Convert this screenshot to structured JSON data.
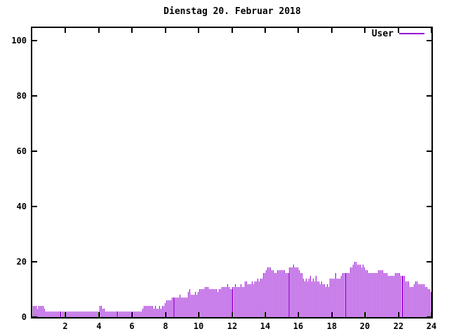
{
  "title": "Dienstag 20. Februar 2018",
  "legend": {
    "label": "User"
  },
  "colors": {
    "series": "#9400d3",
    "axis": "#000000",
    "background": "#ffffff"
  },
  "chart_data": {
    "type": "bar",
    "title": "Dienstag 20. Februar 2018",
    "style": "gnuplot-like impulse plot, one thin vertical bar per 5-minute sample",
    "series_name": "User",
    "bar_color": "#9400d3",
    "x_unit": "hour of day",
    "interval_minutes": 5,
    "first_sample_hour": 0.0833,
    "xlim": [
      0,
      24
    ],
    "ylim": [
      0,
      104.5
    ],
    "y_ticks": [
      0,
      20,
      40,
      60,
      80,
      100
    ],
    "x_ticks": [
      2,
      4,
      6,
      8,
      10,
      12,
      14,
      16,
      18,
      20,
      22,
      24
    ],
    "grid": false,
    "legend_position": "top-right-inside",
    "values": [
      4,
      4,
      4,
      3,
      4,
      4,
      4,
      4,
      3,
      2,
      2,
      2,
      2,
      2,
      2,
      2,
      2,
      2,
      2,
      2,
      2,
      2,
      2,
      2,
      2,
      2,
      2,
      2,
      2,
      2,
      2,
      2,
      2,
      2,
      2,
      2,
      2,
      2,
      2,
      2,
      2,
      2,
      2,
      2,
      2,
      2,
      2,
      2,
      4,
      4,
      3,
      3,
      2,
      2,
      2,
      2,
      2,
      2,
      2,
      2,
      2,
      2,
      2,
      2,
      2,
      2,
      2,
      2,
      2,
      2,
      2,
      2,
      2,
      2,
      2,
      2,
      2,
      2,
      2,
      3,
      4,
      4,
      4,
      4,
      4,
      4,
      4,
      3,
      4,
      3,
      3,
      4,
      3,
      4,
      4,
      5,
      6,
      6,
      6,
      6,
      7,
      7,
      7,
      7,
      7,
      7,
      8,
      7,
      7,
      7,
      7,
      7,
      9,
      10,
      8,
      8,
      8,
      9,
      8,
      9,
      10,
      10,
      10,
      10,
      11,
      11,
      11,
      10,
      10,
      10,
      10,
      10,
      10,
      9,
      10,
      10,
      11,
      11,
      11,
      11,
      12,
      11,
      10,
      10,
      11,
      11,
      12,
      11,
      11,
      11,
      12,
      11,
      11,
      13,
      13,
      12,
      12,
      12,
      13,
      12,
      13,
      13,
      14,
      13,
      14,
      14,
      16,
      16,
      17,
      18,
      18,
      18,
      17,
      17,
      16,
      16,
      17,
      17,
      17,
      17,
      17,
      17,
      16,
      16,
      16,
      18,
      18,
      18,
      19,
      18,
      18,
      18,
      17,
      16,
      16,
      14,
      13,
      14,
      13,
      14,
      15,
      13,
      14,
      13,
      15,
      13,
      13,
      12,
      13,
      12,
      12,
      11,
      12,
      11,
      14,
      14,
      14,
      14,
      16,
      14,
      14,
      14,
      15,
      16,
      16,
      16,
      16,
      16,
      16,
      18,
      18,
      19,
      20,
      20,
      19,
      19,
      19,
      18,
      19,
      18,
      17,
      17,
      16,
      16,
      16,
      16,
      16,
      16,
      16,
      17,
      17,
      17,
      17,
      16,
      16,
      16,
      15,
      15,
      15,
      15,
      15,
      16,
      16,
      16,
      16,
      15,
      15,
      15,
      15,
      13,
      13,
      13,
      11,
      11,
      11,
      12,
      13,
      13,
      12,
      12,
      12,
      12,
      12,
      11,
      11,
      10,
      10,
      9
    ]
  }
}
